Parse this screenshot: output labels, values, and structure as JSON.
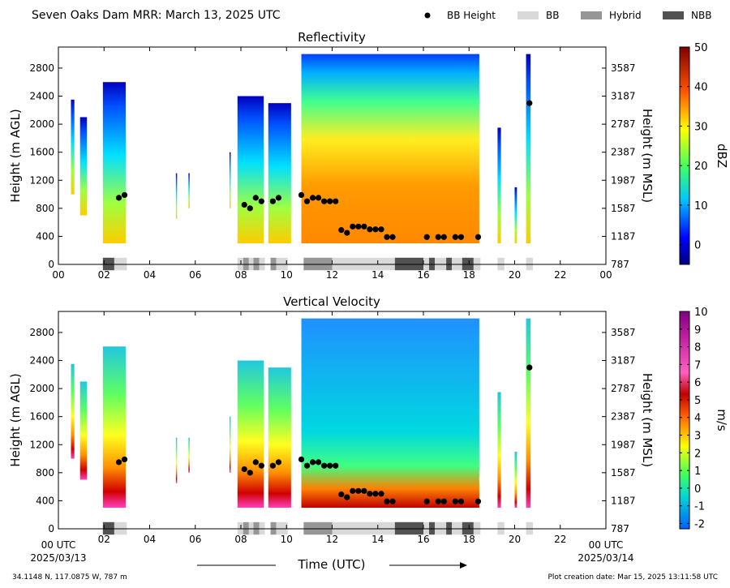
{
  "figure": {
    "title": "Seven Oaks Dam MRR:  March 13, 2025 UTC",
    "xlabel": "Time (UTC)",
    "location": "34.1148 N, 117.0875 W, 787 m",
    "creation": "Plot creation date: Mar 15, 2025 13:11:58 UTC",
    "start_tick": "00 UTC",
    "start_date": "2025/03/13",
    "end_tick": "00 UTC",
    "end_date": "2025/03/14"
  },
  "legend": [
    {
      "label": "BB Height",
      "kind": "dot",
      "color": "#000000"
    },
    {
      "label": "BB",
      "kind": "patch",
      "color": "#d9d9d9"
    },
    {
      "label": "Hybrid",
      "kind": "patch",
      "color": "#969696"
    },
    {
      "label": "NBB",
      "kind": "patch",
      "color": "#525252"
    }
  ],
  "chart_data": [
    {
      "type": "heatmap",
      "title": "Reflectivity",
      "ylabel": "Height (m AGL)",
      "ylabel_right": "Height (m MSL)",
      "cbar_label": "dBZ",
      "cbar_ticks": [
        "0",
        "10",
        "20",
        "30",
        "40",
        "50"
      ],
      "cbar_range": [
        -5,
        50
      ],
      "x_ticks": [
        "00",
        "02",
        "04",
        "06",
        "08",
        "10",
        "12",
        "14",
        "16",
        "18",
        "20",
        "22",
        "00"
      ],
      "y_ticks": [
        "0",
        "400",
        "800",
        "1200",
        "1600",
        "2000",
        "2400",
        "2800"
      ],
      "y_ticks_right": [
        "787",
        "1187",
        "1587",
        "1987",
        "2387",
        "2787",
        "3187",
        "3587"
      ],
      "xlim": [
        0,
        24
      ],
      "ylim": [
        0,
        3100
      ]
    },
    {
      "type": "heatmap",
      "title": "Vertical Velocity",
      "ylabel": "Height (m AGL)",
      "ylabel_right": "Height (m MSL)",
      "cbar_label": "m/s",
      "cbar_ticks": [
        "-2",
        "-1",
        "0",
        "1",
        "2",
        "3",
        "4",
        "5",
        "6",
        "7",
        "8",
        "9",
        "10"
      ],
      "cbar_range": [
        -2.3,
        10
      ],
      "x_ticks": [
        "",
        "02",
        "04",
        "06",
        "08",
        "10",
        "12",
        "14",
        "16",
        "18",
        "20",
        "22",
        ""
      ],
      "y_ticks": [
        "0",
        "400",
        "800",
        "1200",
        "1600",
        "2000",
        "2400",
        "2800"
      ],
      "y_ticks_right": [
        "787",
        "1187",
        "1587",
        "1987",
        "2387",
        "2787",
        "3187",
        "3587"
      ],
      "xlim": [
        0,
        24
      ],
      "ylim": [
        0,
        3100
      ]
    }
  ],
  "echo_columns": [
    {
      "t0": 0.55,
      "t1": 0.7,
      "bot": 1000,
      "top": 2350
    },
    {
      "t0": 0.95,
      "t1": 1.25,
      "bot": 700,
      "top": 2100
    },
    {
      "t0": 1.95,
      "t1": 2.95,
      "bot": 300,
      "top": 2600
    },
    {
      "t0": 5.15,
      "t1": 5.2,
      "bot": 650,
      "top": 1300
    },
    {
      "t0": 5.7,
      "t1": 5.75,
      "bot": 800,
      "top": 1300
    },
    {
      "t0": 7.5,
      "t1": 7.55,
      "bot": 800,
      "top": 1600
    },
    {
      "t0": 7.85,
      "t1": 9.0,
      "bot": 300,
      "top": 2400
    },
    {
      "t0": 9.2,
      "t1": 10.2,
      "bot": 300,
      "top": 2300
    },
    {
      "t0": 10.65,
      "t1": 18.45,
      "bot": 300,
      "top": 3000
    },
    {
      "t0": 19.25,
      "t1": 19.4,
      "bot": 300,
      "top": 1950
    },
    {
      "t0": 20.0,
      "t1": 20.1,
      "bot": 300,
      "top": 1100
    },
    {
      "t0": 20.5,
      "t1": 20.7,
      "bot": 300,
      "top": 3000
    }
  ],
  "bb_height": [
    {
      "t": 2.65,
      "h": 950
    },
    {
      "t": 2.9,
      "h": 990
    },
    {
      "t": 8.15,
      "h": 850
    },
    {
      "t": 8.4,
      "h": 800
    },
    {
      "t": 8.65,
      "h": 950
    },
    {
      "t": 8.9,
      "h": 900
    },
    {
      "t": 9.4,
      "h": 900
    },
    {
      "t": 9.65,
      "h": 950
    },
    {
      "t": 10.65,
      "h": 990
    },
    {
      "t": 10.9,
      "h": 900
    },
    {
      "t": 11.15,
      "h": 950
    },
    {
      "t": 11.4,
      "h": 950
    },
    {
      "t": 11.65,
      "h": 900
    },
    {
      "t": 11.9,
      "h": 900
    },
    {
      "t": 12.15,
      "h": 900
    },
    {
      "t": 12.4,
      "h": 490
    },
    {
      "t": 12.65,
      "h": 450
    },
    {
      "t": 12.9,
      "h": 540
    },
    {
      "t": 13.15,
      "h": 540
    },
    {
      "t": 13.4,
      "h": 540
    },
    {
      "t": 13.65,
      "h": 500
    },
    {
      "t": 13.9,
      "h": 500
    },
    {
      "t": 14.15,
      "h": 500
    },
    {
      "t": 14.4,
      "h": 390
    },
    {
      "t": 14.65,
      "h": 390
    },
    {
      "t": 16.15,
      "h": 390
    },
    {
      "t": 16.65,
      "h": 390
    },
    {
      "t": 16.9,
      "h": 390
    },
    {
      "t": 17.4,
      "h": 390
    },
    {
      "t": 17.65,
      "h": 390
    },
    {
      "t": 18.4,
      "h": 390
    },
    {
      "t": 20.65,
      "h": 2300
    }
  ],
  "bb_type": [
    {
      "t0": 1.95,
      "t1": 2.45,
      "kind": "NBB"
    },
    {
      "t0": 2.45,
      "t1": 3.0,
      "kind": "BB"
    },
    {
      "t0": 7.85,
      "t1": 8.1,
      "kind": "BB"
    },
    {
      "t0": 8.1,
      "t1": 8.35,
      "kind": "Hybrid"
    },
    {
      "t0": 8.35,
      "t1": 8.55,
      "kind": "BB"
    },
    {
      "t0": 8.55,
      "t1": 8.8,
      "kind": "Hybrid"
    },
    {
      "t0": 8.8,
      "t1": 9.05,
      "kind": "BB"
    },
    {
      "t0": 9.3,
      "t1": 9.55,
      "kind": "Hybrid"
    },
    {
      "t0": 9.55,
      "t1": 10.05,
      "kind": "BB"
    },
    {
      "t0": 10.75,
      "t1": 12.0,
      "kind": "Hybrid"
    },
    {
      "t0": 12.0,
      "t1": 14.75,
      "kind": "BB"
    },
    {
      "t0": 14.75,
      "t1": 16.0,
      "kind": "NBB"
    },
    {
      "t0": 16.0,
      "t1": 16.25,
      "kind": "BB"
    },
    {
      "t0": 16.25,
      "t1": 16.5,
      "kind": "NBB"
    },
    {
      "t0": 16.5,
      "t1": 17.0,
      "kind": "BB"
    },
    {
      "t0": 17.0,
      "t1": 17.25,
      "kind": "NBB"
    },
    {
      "t0": 17.25,
      "t1": 17.7,
      "kind": "BB"
    },
    {
      "t0": 17.7,
      "t1": 18.2,
      "kind": "NBB"
    },
    {
      "t0": 18.2,
      "t1": 18.5,
      "kind": "BB"
    },
    {
      "t0": 19.25,
      "t1": 19.55,
      "kind": "BB"
    },
    {
      "t0": 20.5,
      "t1": 20.8,
      "kind": "BB"
    }
  ]
}
